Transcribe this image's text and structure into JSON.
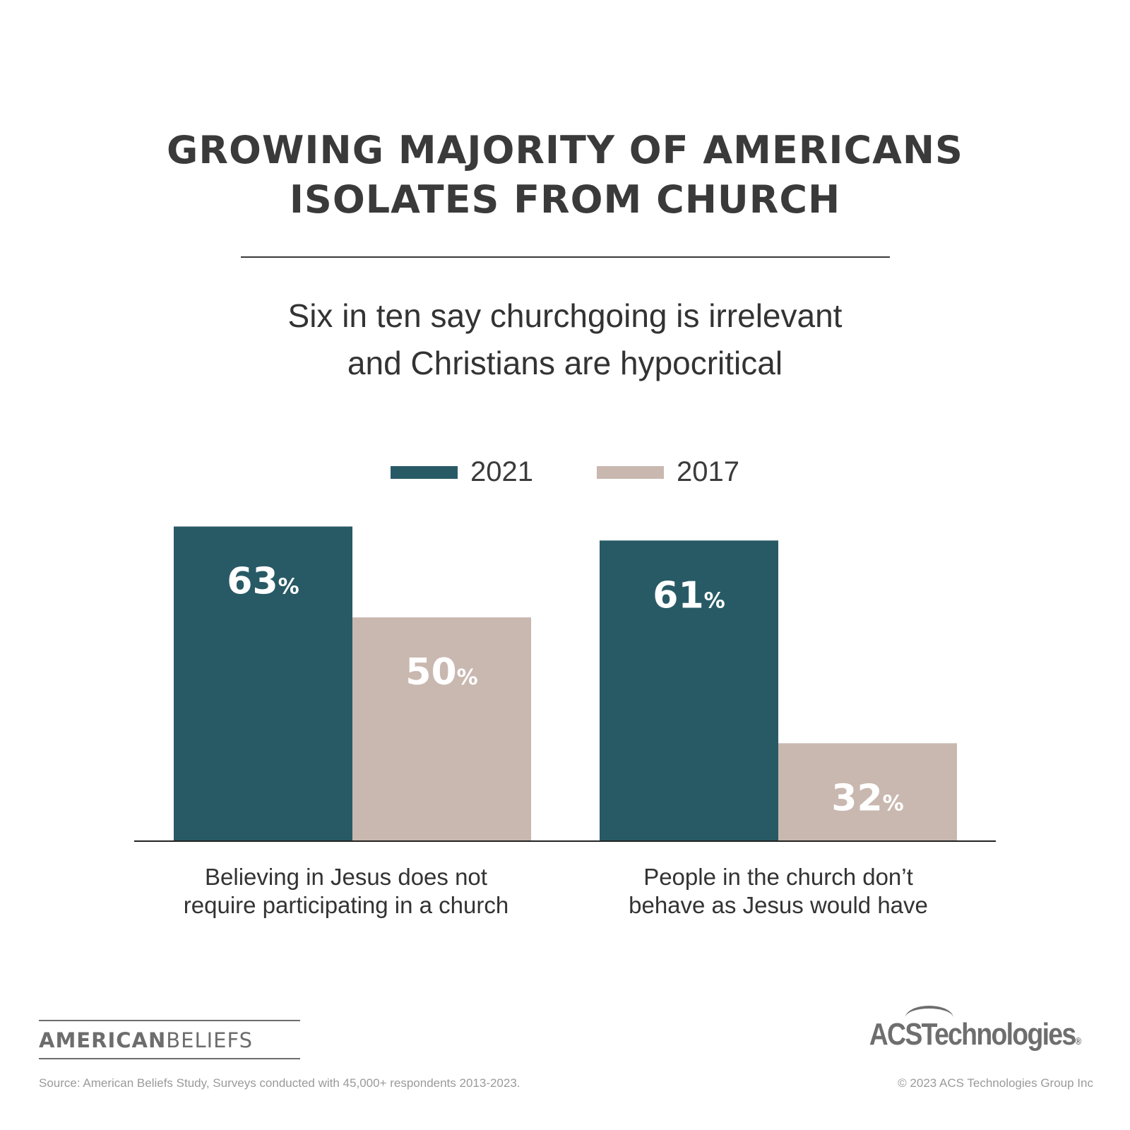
{
  "title_lines": [
    "GROWING MAJORITY OF AMERICANS",
    "ISOLATES FROM CHURCH"
  ],
  "subtitle_lines": [
    "Six in ten say churchgoing is irrelevant",
    "and Christians are hypocritical"
  ],
  "colors": {
    "series_2021": "#285a66",
    "series_2017": "#c9b8b0",
    "label_text": "#ffffff",
    "text": "#3a3a3a"
  },
  "chart_data": {
    "type": "bar",
    "categories": [
      [
        "Believing in Jesus does not",
        "require participating in a church"
      ],
      [
        "People in the church don’t",
        "behave as Jesus would have"
      ]
    ],
    "series": [
      {
        "name": "2021",
        "values": [
          63,
          61
        ]
      },
      {
        "name": "2017",
        "values": [
          50,
          32
        ]
      }
    ],
    "value_suffix": "%",
    "legend_position": "top-center",
    "grid": false,
    "xlabel": "",
    "ylabel": ""
  },
  "footer": {
    "logo_left": {
      "part1": "AMERICAN",
      "part2": "BELIEFS"
    },
    "logo_right": "ACSTechnologies",
    "source": "Source: American Beliefs Study, Surveys conducted with 45,000+ respondents 2013-2023.",
    "copyright": "© 2023 ACS Technologies Group Inc"
  }
}
